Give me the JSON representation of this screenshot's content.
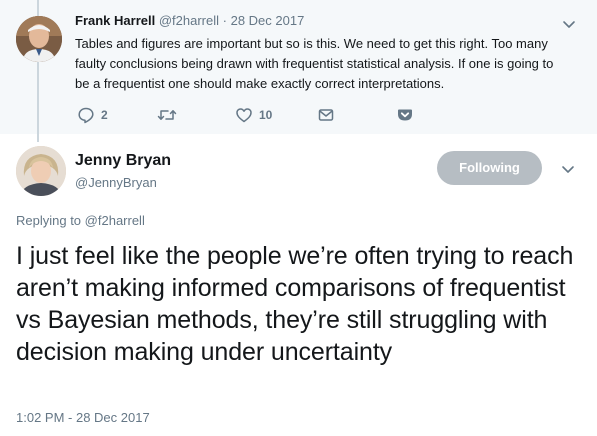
{
  "parent_tweet": {
    "name": "Frank Harrell",
    "handle": "@f2harrell",
    "separator": "·",
    "date": "28 Dec 2017",
    "text": "Tables and figures are important but so is this.  We need to get this right.  Too many faulty conclusions being drawn with frequentist statistical analysis.  If one is going to be a frequentist one should make exactly correct interpretations.",
    "actions": {
      "reply_count": "2",
      "retweet_count": "",
      "like_count": "10"
    }
  },
  "main_tweet": {
    "name": "Jenny Bryan",
    "handle": "@JennyBryan",
    "follow_label": "Following",
    "replying_prefix": "Replying to",
    "replying_to": "@f2harrell",
    "text": "I just feel like the people we’re often trying to reach aren’t making informed comparisons of frequentist vs Bayesian methods, they’re still struggling with decision making under uncertainty",
    "timestamp": "1:02 PM - 28 Dec 2017"
  },
  "icons": {
    "reply": "reply-icon",
    "retweet": "retweet-icon",
    "like": "heart-icon",
    "message": "envelope-icon",
    "save": "pocket-icon",
    "menu": "chevron-down-icon"
  },
  "colors": {
    "muted": "#657786",
    "text": "#14171a",
    "parent_bg": "#f5f8fa",
    "following_button": "#b6bdc3"
  }
}
